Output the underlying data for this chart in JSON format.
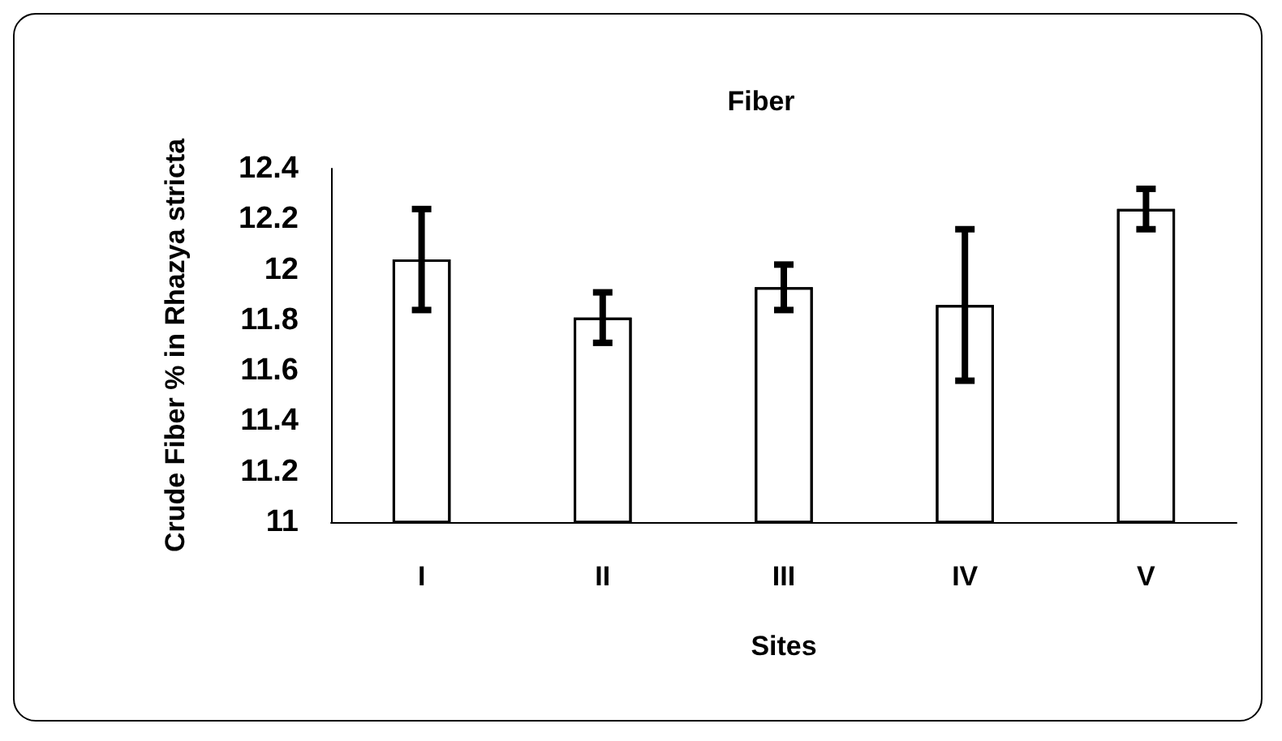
{
  "chart_data": {
    "type": "bar",
    "title": "Fiber",
    "xlabel": "Sites",
    "ylabel": "Crude Fiber % in Rhazya stricta",
    "categories": [
      "I",
      "II",
      "III",
      "IV",
      "V"
    ],
    "values": [
      12.04,
      11.81,
      11.93,
      11.86,
      12.24
    ],
    "errors": [
      0.2,
      0.1,
      0.09,
      0.3,
      0.08
    ],
    "color": "#ffffff",
    "ylim": [
      11,
      12.4
    ],
    "yticks": [
      11,
      11.2,
      11.4,
      11.6,
      11.8,
      12,
      12.2,
      12.4
    ],
    "grid": false
  }
}
